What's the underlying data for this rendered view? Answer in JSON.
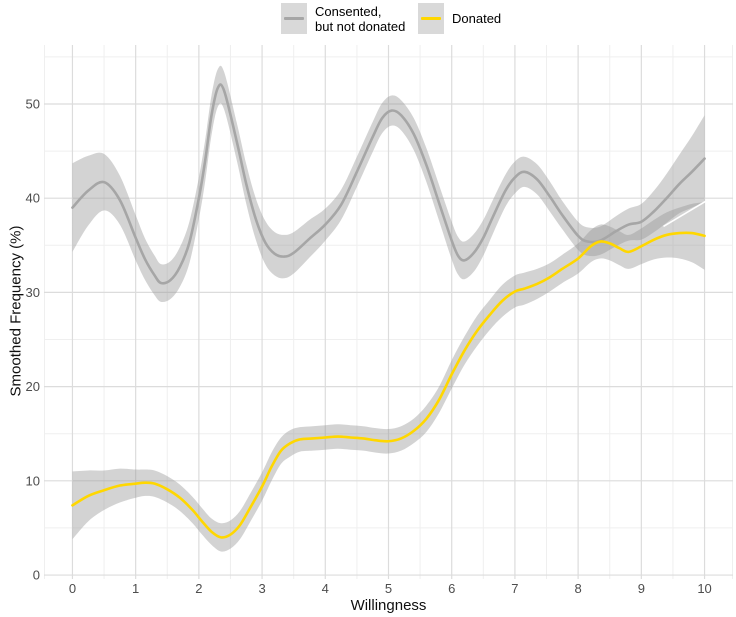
{
  "colors": {
    "background": "#ffffff",
    "grid_major": "#dcdcdc",
    "grid_minor": "#efefef",
    "ribbon_fill": "rgba(150,150,150,0.42)",
    "consented_line": "#a6a6a6",
    "donated_line": "#ffd700",
    "tick_text": "#4d4d4d",
    "legend_key_bg": "#d9d9d9"
  },
  "legend": {
    "items": [
      {
        "label_line1": "Consented,",
        "label_line2": "but not donated",
        "line_color": "#a6a6a6",
        "key_icon": "gray-line-on-gray-swatch"
      },
      {
        "label": "Donated",
        "line_color": "#ffd700",
        "key_icon": "yellow-line-on-gray-swatch"
      }
    ]
  },
  "chart_data": {
    "type": "line",
    "title": "",
    "xlabel": "Willingness",
    "ylabel": "Smoothed Frequency (%)",
    "legend_position": "top-center",
    "grid": "major+minor",
    "xlim": [
      -0.45,
      10.45
    ],
    "ylim": [
      -0.42,
      56.26
    ],
    "x_ticks": [
      0,
      1,
      2,
      3,
      4,
      5,
      6,
      7,
      8,
      9,
      10
    ],
    "y_ticks": [
      0,
      10,
      20,
      30,
      40,
      50
    ],
    "y_minor": [
      5,
      15,
      25,
      35,
      45,
      55
    ],
    "series": [
      {
        "name": "Consented, but not donated",
        "color": "#a6a6a6",
        "smoothed": true,
        "ribbon": true,
        "x": [
          0,
          0.25,
          0.5,
          0.75,
          1,
          1.15,
          1.3,
          1.4,
          1.55,
          1.7,
          1.85,
          2,
          2.1,
          2.2,
          2.3,
          2.4,
          2.6,
          2.75,
          2.9,
          3.05,
          3.2,
          3.35,
          3.5,
          3.75,
          4,
          4.25,
          4.5,
          4.75,
          4.9,
          5.05,
          5.2,
          5.4,
          5.6,
          5.8,
          6,
          6.1,
          6.2,
          6.35,
          6.5,
          6.65,
          6.85,
          7,
          7.15,
          7.35,
          7.55,
          7.75,
          8,
          8.15,
          8.35,
          8.6,
          8.8,
          9,
          9.2,
          9.4,
          9.6,
          9.8,
          10
        ],
        "y": [
          39.0,
          40.8,
          41.7,
          39.8,
          35.8,
          33.5,
          31.8,
          31.0,
          31.3,
          32.7,
          35.3,
          40.0,
          44.0,
          48.8,
          51.7,
          51.4,
          46.0,
          41.5,
          37.8,
          35.3,
          34.1,
          33.8,
          34.2,
          35.7,
          37.2,
          39.3,
          42.8,
          46.5,
          48.5,
          49.3,
          48.8,
          46.8,
          43.5,
          39.5,
          35.5,
          33.9,
          33.4,
          34.2,
          35.8,
          38.0,
          40.8,
          42.2,
          42.8,
          42.0,
          40.2,
          38.2,
          36.0,
          35.4,
          35.5,
          36.5,
          37.2,
          37.5,
          38.6,
          40.0,
          41.5,
          42.8,
          44.2
        ],
        "ci_halfwidth": [
          4.7,
          3.7,
          3.0,
          2.6,
          2.4,
          2.2,
          2.1,
          2.0,
          2.0,
          2.1,
          2.2,
          2.2,
          2.2,
          2.1,
          2.0,
          2.0,
          2.0,
          2.1,
          2.2,
          2.3,
          2.3,
          2.3,
          2.2,
          2.0,
          1.7,
          1.6,
          1.6,
          1.6,
          1.6,
          1.6,
          1.6,
          1.7,
          1.8,
          1.9,
          2.0,
          2.0,
          2.0,
          2.0,
          1.9,
          1.8,
          1.7,
          1.7,
          1.6,
          1.6,
          1.6,
          1.5,
          1.5,
          1.5,
          1.5,
          1.6,
          1.7,
          1.9,
          2.2,
          2.6,
          3.1,
          3.8,
          4.6
        ]
      },
      {
        "name": "Donated",
        "color": "#ffd700",
        "smoothed": true,
        "ribbon": true,
        "x": [
          0,
          0.25,
          0.5,
          0.75,
          1,
          1.15,
          1.3,
          1.5,
          1.7,
          1.9,
          2.05,
          2.2,
          2.35,
          2.5,
          2.65,
          2.8,
          3,
          3.15,
          3.3,
          3.45,
          3.6,
          3.8,
          4,
          4.2,
          4.4,
          4.6,
          4.8,
          5,
          5.2,
          5.4,
          5.6,
          5.8,
          6,
          6.2,
          6.4,
          6.6,
          6.8,
          7,
          7.15,
          7.35,
          7.55,
          7.75,
          8,
          8.2,
          8.35,
          8.5,
          8.65,
          8.8,
          9,
          9.2,
          9.4,
          9.6,
          9.8,
          10
        ],
        "y": [
          7.4,
          8.4,
          9.0,
          9.5,
          9.7,
          9.8,
          9.7,
          9.1,
          8.2,
          6.9,
          5.7,
          4.6,
          4.0,
          4.3,
          5.3,
          7.0,
          9.4,
          11.5,
          13.2,
          14.0,
          14.4,
          14.5,
          14.6,
          14.7,
          14.6,
          14.5,
          14.3,
          14.2,
          14.5,
          15.3,
          16.6,
          18.6,
          21.3,
          23.8,
          25.9,
          27.6,
          29.1,
          30.1,
          30.4,
          30.9,
          31.6,
          32.5,
          33.6,
          34.9,
          35.4,
          35.2,
          34.7,
          34.3,
          34.9,
          35.6,
          36.1,
          36.3,
          36.3,
          36.0
        ],
        "ci_halfwidth": [
          3.6,
          2.7,
          2.1,
          1.8,
          1.5,
          1.4,
          1.4,
          1.4,
          1.4,
          1.4,
          1.4,
          1.4,
          1.5,
          1.5,
          1.5,
          1.5,
          1.5,
          1.5,
          1.4,
          1.4,
          1.3,
          1.3,
          1.3,
          1.3,
          1.3,
          1.3,
          1.3,
          1.3,
          1.3,
          1.3,
          1.4,
          1.4,
          1.5,
          1.5,
          1.6,
          1.6,
          1.7,
          1.7,
          1.7,
          1.6,
          1.5,
          1.5,
          1.6,
          1.7,
          1.8,
          1.8,
          1.8,
          1.8,
          1.9,
          2.1,
          2.4,
          2.7,
          3.1,
          3.6
        ]
      }
    ],
    "artifacts": {
      "white_streak": {
        "x1": 9.35,
        "y1": 37.0,
        "x2": 10.05,
        "y2": 39.8
      }
    }
  }
}
